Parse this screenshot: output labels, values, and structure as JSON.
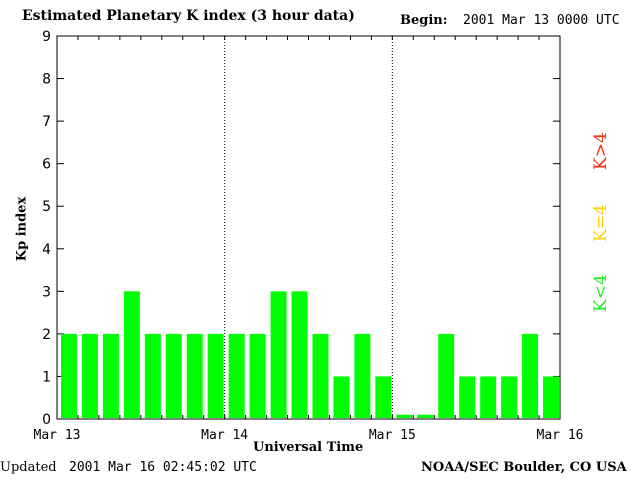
{
  "header": {
    "title": "Estimated Planetary K index (3 hour data)",
    "begin_label": "Begin:",
    "begin_value": "2001 Mar 13 0000 UTC"
  },
  "footer": {
    "updated_label": "Updated",
    "updated_value": "2001 Mar 16 02:45:02 UTC",
    "source": "NOAA/SEC Boulder, CO USA"
  },
  "legend": {
    "above": "K>4",
    "equal": "K=4",
    "below": "K<4"
  },
  "colors": {
    "below": "#00ff00",
    "equal": "#ffd200",
    "above": "#ff2a00",
    "background": "#ffffff",
    "axis": "#000000"
  },
  "chart_data": {
    "type": "bar",
    "title": "Estimated Planetary K index (3 hour data)",
    "xlabel": "Universal Time",
    "ylabel": "Kp index",
    "ylim": [
      0,
      9
    ],
    "yticks": [
      "0",
      "1",
      "2",
      "3",
      "4",
      "5",
      "6",
      "7",
      "8",
      "9"
    ],
    "xticks": [
      "Mar 13",
      "Mar 14",
      "Mar 15",
      "Mar 16"
    ],
    "day_separators": [
      "Mar 14",
      "Mar 15"
    ],
    "interval_hours": 3,
    "categories": [
      "Mar 13 00",
      "Mar 13 03",
      "Mar 13 06",
      "Mar 13 09",
      "Mar 13 12",
      "Mar 13 15",
      "Mar 13 18",
      "Mar 13 21",
      "Mar 14 00",
      "Mar 14 03",
      "Mar 14 06",
      "Mar 14 09",
      "Mar 14 12",
      "Mar 14 15",
      "Mar 14 18",
      "Mar 14 21",
      "Mar 15 00",
      "Mar 15 03",
      "Mar 15 06",
      "Mar 15 09",
      "Mar 15 12",
      "Mar 15 15",
      "Mar 15 18",
      "Mar 15 21"
    ],
    "values": [
      2,
      2,
      2,
      3,
      2,
      2,
      2,
      2,
      2,
      2,
      3,
      3,
      2,
      1,
      2,
      1,
      0.1,
      0.1,
      2,
      1,
      1,
      1,
      2,
      1
    ],
    "grid": false
  }
}
